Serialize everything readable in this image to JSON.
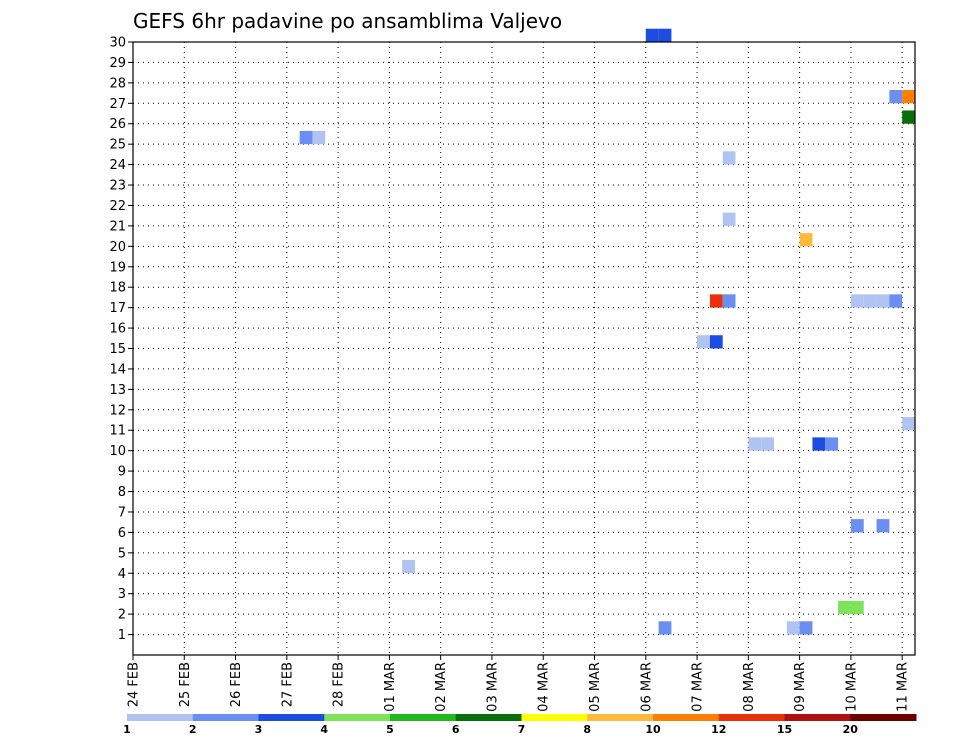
{
  "chart_data": {
    "type": "heatmap",
    "title": "GEFS 6hr padavine po ansamblima Valjevo",
    "xlabel": "",
    "ylabel": "",
    "x_tick_labels": [
      "24 FEB",
      "25 FEB",
      "26 FEB",
      "27 FEB",
      "28 FEB",
      "01 MAR",
      "02 MAR",
      "03 MAR",
      "04 MAR",
      "05 MAR",
      "06 MAR",
      "07 MAR",
      "08 MAR",
      "09 MAR",
      "10 MAR",
      "11 MAR"
    ],
    "x_range_days": [
      0,
      15.25
    ],
    "y_tick_labels": [
      "1",
      "2",
      "3",
      "4",
      "5",
      "6",
      "7",
      "8",
      "9",
      "10",
      "11",
      "12",
      "13",
      "14",
      "15",
      "16",
      "17",
      "18",
      "19",
      "20",
      "21",
      "22",
      "23",
      "24",
      "25",
      "26",
      "27",
      "28",
      "29",
      "30"
    ],
    "ylim": [
      0,
      30
    ],
    "grid": "dotted",
    "colorbar": {
      "labels": [
        "1",
        "2",
        "3",
        "4",
        "5",
        "6",
        "7",
        "8",
        "10",
        "12",
        "15",
        "20"
      ],
      "colors": [
        "#b0c4f2",
        "#6b8ff0",
        "#1a4de0",
        "#7ee25a",
        "#1fb81f",
        "#0a6e0a",
        "#ffff00",
        "#ffba3c",
        "#ff7f00",
        "#e8300a",
        "#b01010",
        "#6b0000"
      ]
    },
    "cells": [
      {
        "member": 30,
        "day": 10.0,
        "value": 3
      },
      {
        "member": 30,
        "day": 10.25,
        "value": 3
      },
      {
        "member": 27,
        "day": 14.75,
        "value": 2
      },
      {
        "member": 27,
        "day": 15.0,
        "value": 10
      },
      {
        "member": 26,
        "day": 15.0,
        "value": 6
      },
      {
        "member": 25,
        "day": 3.25,
        "value": 2
      },
      {
        "member": 25,
        "day": 3.5,
        "value": 1
      },
      {
        "member": 24,
        "day": 11.5,
        "value": 1
      },
      {
        "member": 21,
        "day": 11.5,
        "value": 1
      },
      {
        "member": 20,
        "day": 13.0,
        "value": 8
      },
      {
        "member": 17,
        "day": 11.25,
        "value": 12
      },
      {
        "member": 17,
        "day": 11.5,
        "value": 2
      },
      {
        "member": 17,
        "day": 14.0,
        "value": 1
      },
      {
        "member": 17,
        "day": 14.25,
        "value": 1
      },
      {
        "member": 17,
        "day": 14.5,
        "value": 1
      },
      {
        "member": 17,
        "day": 14.75,
        "value": 2
      },
      {
        "member": 15,
        "day": 11.0,
        "value": 1
      },
      {
        "member": 15,
        "day": 11.25,
        "value": 3
      },
      {
        "member": 11,
        "day": 15.0,
        "value": 1
      },
      {
        "member": 10,
        "day": 12.0,
        "value": 1
      },
      {
        "member": 10,
        "day": 12.25,
        "value": 1
      },
      {
        "member": 10,
        "day": 13.25,
        "value": 3
      },
      {
        "member": 10,
        "day": 13.5,
        "value": 2
      },
      {
        "member": 6,
        "day": 14.0,
        "value": 2
      },
      {
        "member": 6,
        "day": 14.5,
        "value": 2
      },
      {
        "member": 4,
        "day": 5.25,
        "value": 1
      },
      {
        "member": 2,
        "day": 13.75,
        "value": 4
      },
      {
        "member": 2,
        "day": 14.0,
        "value": 4
      },
      {
        "member": 1,
        "day": 10.25,
        "value": 2
      },
      {
        "member": 1,
        "day": 12.75,
        "value": 1
      },
      {
        "member": 1,
        "day": 13.0,
        "value": 2
      }
    ]
  }
}
